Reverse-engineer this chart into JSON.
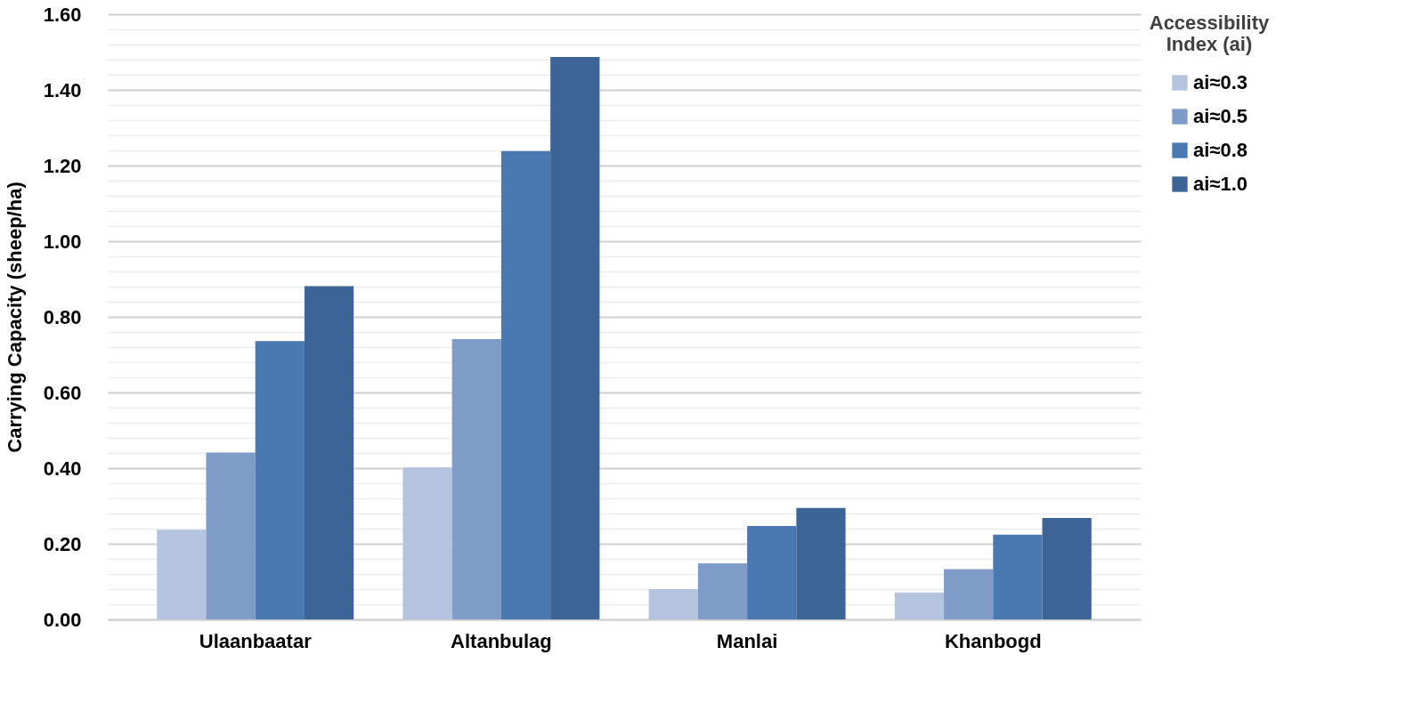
{
  "chart_data": {
    "type": "bar",
    "ylabel": "Carrying Capacity (sheep/ha)",
    "legend_title": "Accessibility Index (ai)",
    "categories": [
      "Ulaanbaatar",
      "Altanbulag",
      "Manlai",
      "Khanbogd"
    ],
    "series": [
      {
        "name": "ai≈0.3",
        "color": "#b4c3de",
        "values": [
          0.237,
          0.402,
          0.08,
          0.071
        ]
      },
      {
        "name": "ai≈0.5",
        "color": "#7f9cc8",
        "values": [
          0.441,
          0.741,
          0.148,
          0.133
        ]
      },
      {
        "name": "ai≈0.8",
        "color": "#4a78b0",
        "values": [
          0.736,
          1.238,
          0.247,
          0.224
        ]
      },
      {
        "name": "ai≈1.0",
        "color": "#3d6496",
        "values": [
          0.881,
          1.487,
          0.295,
          0.268
        ]
      }
    ],
    "ylim": [
      0,
      1.6
    ],
    "yticks": [
      "0.00",
      {
        "value": 0.04,
        "label": null
      },
      {
        "value": 0.08,
        "label": null
      },
      {
        "value": 0.12,
        "label": null
      },
      {
        "value": 0.16,
        "label": null
      },
      {
        "value": 0.2,
        "label": "0.20"
      },
      {
        "value": 0.24,
        "label": null
      },
      {
        "value": 0.28,
        "label": null
      },
      {
        "value": 0.32,
        "label": null
      },
      {
        "value": 0.36,
        "label": null
      },
      {
        "value": 0.4,
        "label": "0.40"
      },
      {
        "value": 0.44,
        "label": null
      },
      {
        "value": 0.48,
        "label": null
      },
      {
        "value": 0.52,
        "label": null
      },
      {
        "value": 0.56,
        "label": null
      },
      {
        "value": 0.6,
        "label": "0.60"
      },
      {
        "value": 0.64,
        "label": null
      },
      {
        "value": 0.68,
        "label": null
      },
      {
        "value": 0.72,
        "label": null
      },
      {
        "value": 0.76,
        "label": null
      },
      {
        "value": 0.8,
        "label": "0.80"
      },
      {
        "value": 0.84,
        "label": null
      },
      {
        "value": 0.88,
        "label": null
      },
      {
        "value": 0.92,
        "label": null
      },
      {
        "value": 0.96,
        "label": null
      },
      {
        "value": 1.0,
        "label": "1.00"
      },
      {
        "value": 1.04,
        "label": null
      },
      {
        "value": 1.08,
        "label": null
      },
      {
        "value": 1.12,
        "label": null
      },
      {
        "value": 1.16,
        "label": null
      },
      {
        "value": 1.2,
        "label": "1.20"
      },
      {
        "value": 1.24,
        "label": null
      },
      {
        "value": 1.28,
        "label": null
      },
      {
        "value": 1.32,
        "label": null
      },
      {
        "value": 1.36,
        "label": null
      },
      {
        "value": 1.4,
        "label": "1.40"
      },
      {
        "value": 1.44,
        "label": null
      },
      {
        "value": 1.48,
        "label": null
      },
      {
        "value": 1.52,
        "label": null
      },
      {
        "value": 1.56,
        "label": null
      },
      {
        "value": 1.6,
        "label": "1.60"
      }
    ],
    "grid": true,
    "legend": "right"
  }
}
